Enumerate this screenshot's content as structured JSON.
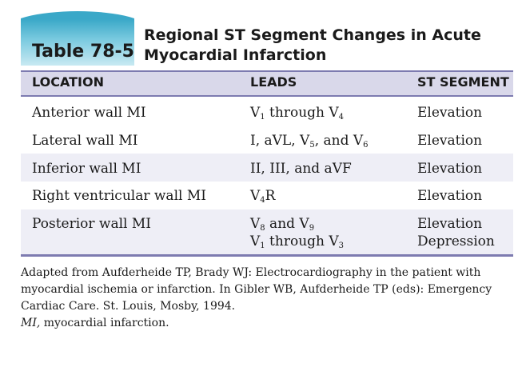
{
  "table": {
    "number": "Table 78-5",
    "title_line1": "Regional ST Segment Changes in Acute",
    "title_line2": "Myocardial Infarction",
    "headers": {
      "location": "LOCATION",
      "leads": "LEADS",
      "st_segment": "ST SEGMENT"
    },
    "rows": [
      {
        "location": "Anterior wall MI",
        "leads": [
          [
            "V",
            "1",
            " through V",
            "4",
            ""
          ]
        ],
        "st": [
          "Elevation"
        ]
      },
      {
        "location": "Lateral wall MI",
        "leads": [
          [
            "I, aVL, V",
            "5",
            ", and V",
            "6",
            ""
          ]
        ],
        "st": [
          "Elevation"
        ]
      },
      {
        "location": "Inferior wall MI",
        "leads": [
          [
            "II, III, and aVF",
            "",
            "",
            "",
            ""
          ]
        ],
        "st": [
          "Elevation"
        ]
      },
      {
        "location": "Right ventricular wall MI",
        "leads": [
          [
            "V",
            "4",
            "R",
            "",
            ""
          ]
        ],
        "st": [
          "Elevation"
        ]
      },
      {
        "location": "Posterior wall MI",
        "leads": [
          [
            "V",
            "8",
            " and V",
            "9",
            ""
          ],
          [
            "V",
            "1",
            " through V",
            "3",
            ""
          ]
        ],
        "st": [
          "Elevation",
          "Depression"
        ]
      }
    ]
  },
  "footnote": {
    "source": "Adapted from Aufderheide TP, Brady WJ: Electrocardiography in the patient with myocardial ischemia or infarction. In Gibler WB, Aufderheide TP (eds): Emergency Cardiac Care. St. Louis, Mosby, 1994.",
    "abbr_term": "MI,",
    "abbr_def": " myocardial infarction."
  },
  "colors": {
    "tab_teal": "#3aa8c8",
    "rule_purple": "#7d7bb0",
    "header_fill": "#d9d8ea",
    "stripe": "#eeeef6"
  }
}
